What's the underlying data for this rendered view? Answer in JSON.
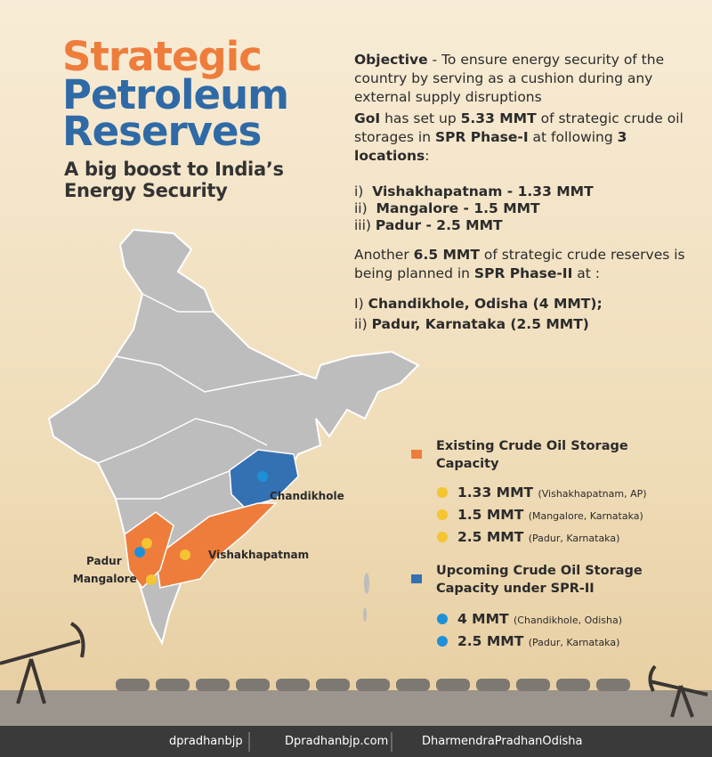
{
  "header": {
    "title": [
      "Strategic",
      "Petroleum",
      "Reserves"
    ],
    "subtitle": [
      "A big boost to India’s",
      "Energy Security"
    ]
  },
  "info": {
    "objective": [
      "Objective",
      " - To ensure energy security of the country by serving as a cushion during any external supply disruptions"
    ],
    "phase1": [
      "GoI",
      " has set up ",
      "5.33 MMT",
      " of strategic crude oil storages in ",
      "SPR Phase-I",
      " at following ",
      "3 locations",
      ":"
    ],
    "locations": [
      [
        "i)",
        "Vishakhapatnam - 1.33 MMT"
      ],
      [
        "ii)",
        "Mangalore - 1.5 MMT"
      ],
      [
        "iii)",
        "Padur - 2.5 MMT"
      ]
    ],
    "phase2": [
      "Another ",
      "6.5 MMT",
      " of strategic crude reserves is being planned in ",
      "SPR Phase-II",
      " at :"
    ],
    "planned": [
      [
        "I)",
        "Chandikhole, Odisha (4 MMT);"
      ],
      [
        "ii)",
        "Padur, Karnataka (2.5 MMT)"
      ]
    ]
  },
  "map_labels": [
    "Chandikhole",
    "Vishakhapatnam",
    "Padur",
    "Mangalore"
  ],
  "legend": {
    "existing": {
      "title": "Existing Crude Oil Storage Capacity",
      "items": [
        {
          "amount": "1.33 MMT",
          "place": "(Vishakhapatnam, AP)"
        },
        {
          "amount": "1.5 MMT",
          "place": "(Mangalore, Karnataka)"
        },
        {
          "amount": "2.5 MMT",
          "place": "(Padur, Karnataka)"
        }
      ]
    },
    "upcoming": {
      "title": "Upcoming Crude Oil Storage Capacity under SPR-II",
      "items": [
        {
          "amount": "4 MMT",
          "place": "(Chandikhole, Odisha)"
        },
        {
          "amount": "2.5 MMT",
          "place": "(Padur, Karnataka)"
        }
      ]
    }
  },
  "footer": [
    "dpradhanbjp",
    "Dpradhanbjp.com",
    "DharmendraPradhanOdisha"
  ]
}
